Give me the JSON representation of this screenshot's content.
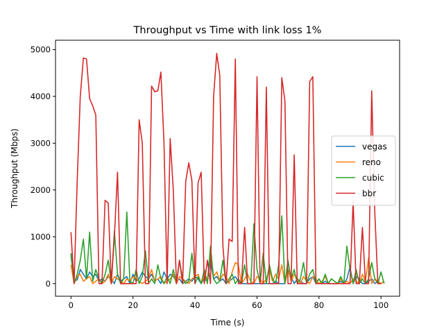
{
  "chart_data": {
    "type": "line",
    "title": "Throughput vs Time with link loss 1%",
    "xlabel": "Time (s)",
    "ylabel": "Throughput (Mbps)",
    "xlim": [
      -5,
      106
    ],
    "ylim": [
      -270,
      5200
    ],
    "x_ticks": [
      0,
      20,
      40,
      60,
      80,
      100
    ],
    "y_ticks": [
      0,
      1000,
      2000,
      3000,
      4000,
      5000
    ],
    "grid": false,
    "legend_position": "center-right",
    "series": [
      {
        "name": "vegas",
        "color": "#1f77b4",
        "x": [
          0,
          1,
          2,
          3,
          4,
          5,
          6,
          7,
          8,
          9,
          10,
          11,
          12,
          13,
          14,
          15,
          16,
          17,
          18,
          19,
          20,
          21,
          22,
          23,
          24,
          25,
          26,
          27,
          28,
          29,
          30,
          31,
          32,
          33,
          34,
          35,
          36,
          37,
          38,
          39,
          40,
          41,
          42,
          43,
          44,
          45,
          46,
          47,
          48,
          49,
          50,
          51,
          52,
          53,
          54,
          55,
          56,
          57,
          58,
          59,
          60,
          61,
          62,
          63,
          64,
          65,
          66,
          67,
          68,
          69,
          70,
          71,
          72,
          73,
          74,
          75,
          76,
          77,
          78,
          79,
          80,
          81,
          82,
          83,
          84,
          85,
          86,
          87,
          88,
          89,
          90,
          91,
          92,
          93,
          94,
          95,
          96,
          97,
          98,
          99,
          100,
          101
        ],
        "y": [
          600,
          50,
          80,
          300,
          200,
          100,
          250,
          150,
          200,
          50,
          100,
          50,
          150,
          100,
          0,
          200,
          50,
          100,
          150,
          0,
          200,
          50,
          100,
          250,
          150,
          100,
          200,
          50,
          100,
          0,
          250,
          100,
          200,
          150,
          50,
          100,
          0,
          50,
          100,
          50,
          150,
          100,
          0,
          100,
          50,
          500,
          100,
          150,
          50,
          100,
          0,
          50,
          100,
          150,
          50,
          0,
          0,
          0,
          0,
          0,
          0,
          0,
          0,
          0,
          0,
          0,
          50,
          0,
          0,
          0,
          300,
          150,
          0,
          100,
          50,
          0,
          0,
          100,
          150,
          0,
          100,
          0,
          50,
          0,
          0,
          0,
          0,
          50,
          0,
          100,
          350,
          0,
          150,
          100,
          0,
          0,
          50,
          100,
          0,
          50,
          0,
          50
        ]
      },
      {
        "name": "reno",
        "color": "#ff7f0e",
        "x": [
          0,
          1,
          2,
          3,
          4,
          5,
          6,
          7,
          8,
          9,
          10,
          11,
          12,
          13,
          14,
          15,
          16,
          17,
          18,
          19,
          20,
          21,
          22,
          23,
          24,
          25,
          26,
          27,
          28,
          29,
          30,
          31,
          32,
          33,
          34,
          35,
          36,
          37,
          38,
          39,
          40,
          41,
          42,
          43,
          44,
          45,
          46,
          47,
          48,
          49,
          50,
          51,
          52,
          53,
          54,
          55,
          56,
          57,
          58,
          59,
          60,
          61,
          62,
          63,
          64,
          65,
          66,
          67,
          68,
          69,
          70,
          71,
          72,
          73,
          74,
          75,
          76,
          77,
          78,
          79,
          80,
          81,
          82,
          83,
          84,
          85,
          86,
          87,
          88,
          89,
          90,
          91,
          92,
          93,
          94,
          95,
          96,
          97,
          98,
          99,
          100,
          101
        ],
        "y": [
          400,
          0,
          150,
          200,
          50,
          100,
          150,
          0,
          50,
          100,
          0,
          50,
          200,
          0,
          150,
          100,
          50,
          0,
          100,
          50,
          150,
          100,
          50,
          0,
          50,
          100,
          300,
          50,
          100,
          150,
          0,
          50,
          100,
          200,
          0,
          150,
          100,
          50,
          0,
          100,
          150,
          200,
          0,
          150,
          100,
          650,
          150,
          250,
          50,
          200,
          150,
          0,
          250,
          450,
          400,
          0,
          100,
          200,
          50,
          0,
          150,
          100,
          0,
          100,
          300,
          50,
          200,
          100,
          400,
          0,
          300,
          50,
          200,
          100,
          0,
          150,
          50,
          0,
          150,
          100,
          0,
          50,
          150,
          0,
          100,
          50,
          0,
          100,
          0,
          50,
          0,
          100,
          50,
          0,
          200,
          50,
          550,
          0,
          100,
          50,
          0,
          50
        ]
      },
      {
        "name": "cubic",
        "color": "#2ca02c",
        "x": [
          0,
          1,
          2,
          3,
          4,
          5,
          6,
          7,
          8,
          9,
          10,
          11,
          12,
          13,
          14,
          15,
          16,
          17,
          18,
          19,
          20,
          21,
          22,
          23,
          24,
          25,
          26,
          27,
          28,
          29,
          30,
          31,
          32,
          33,
          34,
          35,
          36,
          37,
          38,
          39,
          40,
          41,
          42,
          43,
          44,
          45,
          46,
          47,
          48,
          49,
          50,
          51,
          52,
          53,
          54,
          55,
          56,
          57,
          58,
          59,
          60,
          61,
          62,
          63,
          64,
          65,
          66,
          67,
          68,
          69,
          70,
          71,
          72,
          73,
          74,
          75,
          76,
          77,
          78,
          79,
          80,
          81,
          82,
          83,
          84,
          85,
          86,
          87,
          88,
          89,
          90,
          91,
          92,
          93,
          94,
          95,
          96,
          97,
          98,
          99,
          100,
          101
        ],
        "y": [
          650,
          0,
          200,
          500,
          950,
          100,
          1100,
          50,
          300,
          100,
          0,
          200,
          500,
          0,
          1120,
          200,
          0,
          100,
          1530,
          50,
          0,
          300,
          0,
          150,
          700,
          0,
          100,
          0,
          400,
          100,
          0,
          150,
          0,
          300,
          0,
          500,
          100,
          0,
          50,
          650,
          0,
          150,
          0,
          300,
          0,
          800,
          100,
          0,
          50,
          500,
          0,
          100,
          200,
          0,
          100,
          0,
          400,
          0,
          0,
          1280,
          300,
          0,
          650,
          0,
          400,
          100,
          0,
          400,
          1450,
          0,
          500,
          100,
          300,
          0,
          100,
          450,
          0,
          200,
          300,
          0,
          100,
          0,
          200,
          0,
          100,
          50,
          0,
          150,
          0,
          800,
          300,
          0,
          300,
          0,
          100,
          0,
          100,
          450,
          100,
          0,
          250,
          0
        ]
      },
      {
        "name": "bbr",
        "color": "#d62728",
        "x": [
          0,
          1,
          2,
          3,
          4,
          5,
          6,
          7,
          8,
          9,
          10,
          11,
          12,
          13,
          14,
          15,
          16,
          17,
          18,
          19,
          20,
          21,
          22,
          23,
          24,
          25,
          26,
          27,
          28,
          29,
          30,
          31,
          32,
          33,
          34,
          35,
          36,
          37,
          38,
          39,
          40,
          41,
          42,
          43,
          44,
          45,
          46,
          47,
          48,
          49,
          50,
          51,
          52,
          53,
          54,
          55,
          56,
          57,
          58,
          59,
          60,
          61,
          62,
          63,
          64,
          65,
          66,
          67,
          68,
          69,
          70,
          71,
          72,
          73,
          74,
          75,
          76,
          77,
          78,
          79,
          80,
          81,
          82,
          83,
          84,
          85,
          86,
          87,
          88,
          89,
          90,
          91,
          92,
          93,
          94,
          95,
          96,
          97,
          98,
          99,
          100
        ],
        "y": [
          1100,
          0,
          2200,
          4000,
          4820,
          4800,
          3950,
          3800,
          3600,
          0,
          0,
          1780,
          1720,
          0,
          1000,
          2380,
          0,
          0,
          0,
          0,
          0,
          0,
          3500,
          3000,
          0,
          0,
          4220,
          4100,
          4120,
          4520,
          3000,
          0,
          3100,
          2000,
          0,
          500,
          0,
          2180,
          2580,
          2200,
          0,
          2150,
          2380,
          0,
          500,
          0,
          4000,
          4920,
          4450,
          800,
          0,
          950,
          900,
          4800,
          0,
          0,
          1200,
          0,
          0,
          0,
          4420,
          0,
          0,
          4200,
          0,
          0,
          0,
          0,
          4400,
          3900,
          0,
          0,
          2750,
          0,
          0,
          0,
          0,
          4320,
          4420,
          0,
          0,
          0,
          0,
          0,
          0,
          0,
          0,
          0,
          0,
          0,
          0,
          1750,
          0,
          0,
          1200,
          0,
          0,
          4120,
          1500,
          0,
          0
        ]
      }
    ]
  }
}
